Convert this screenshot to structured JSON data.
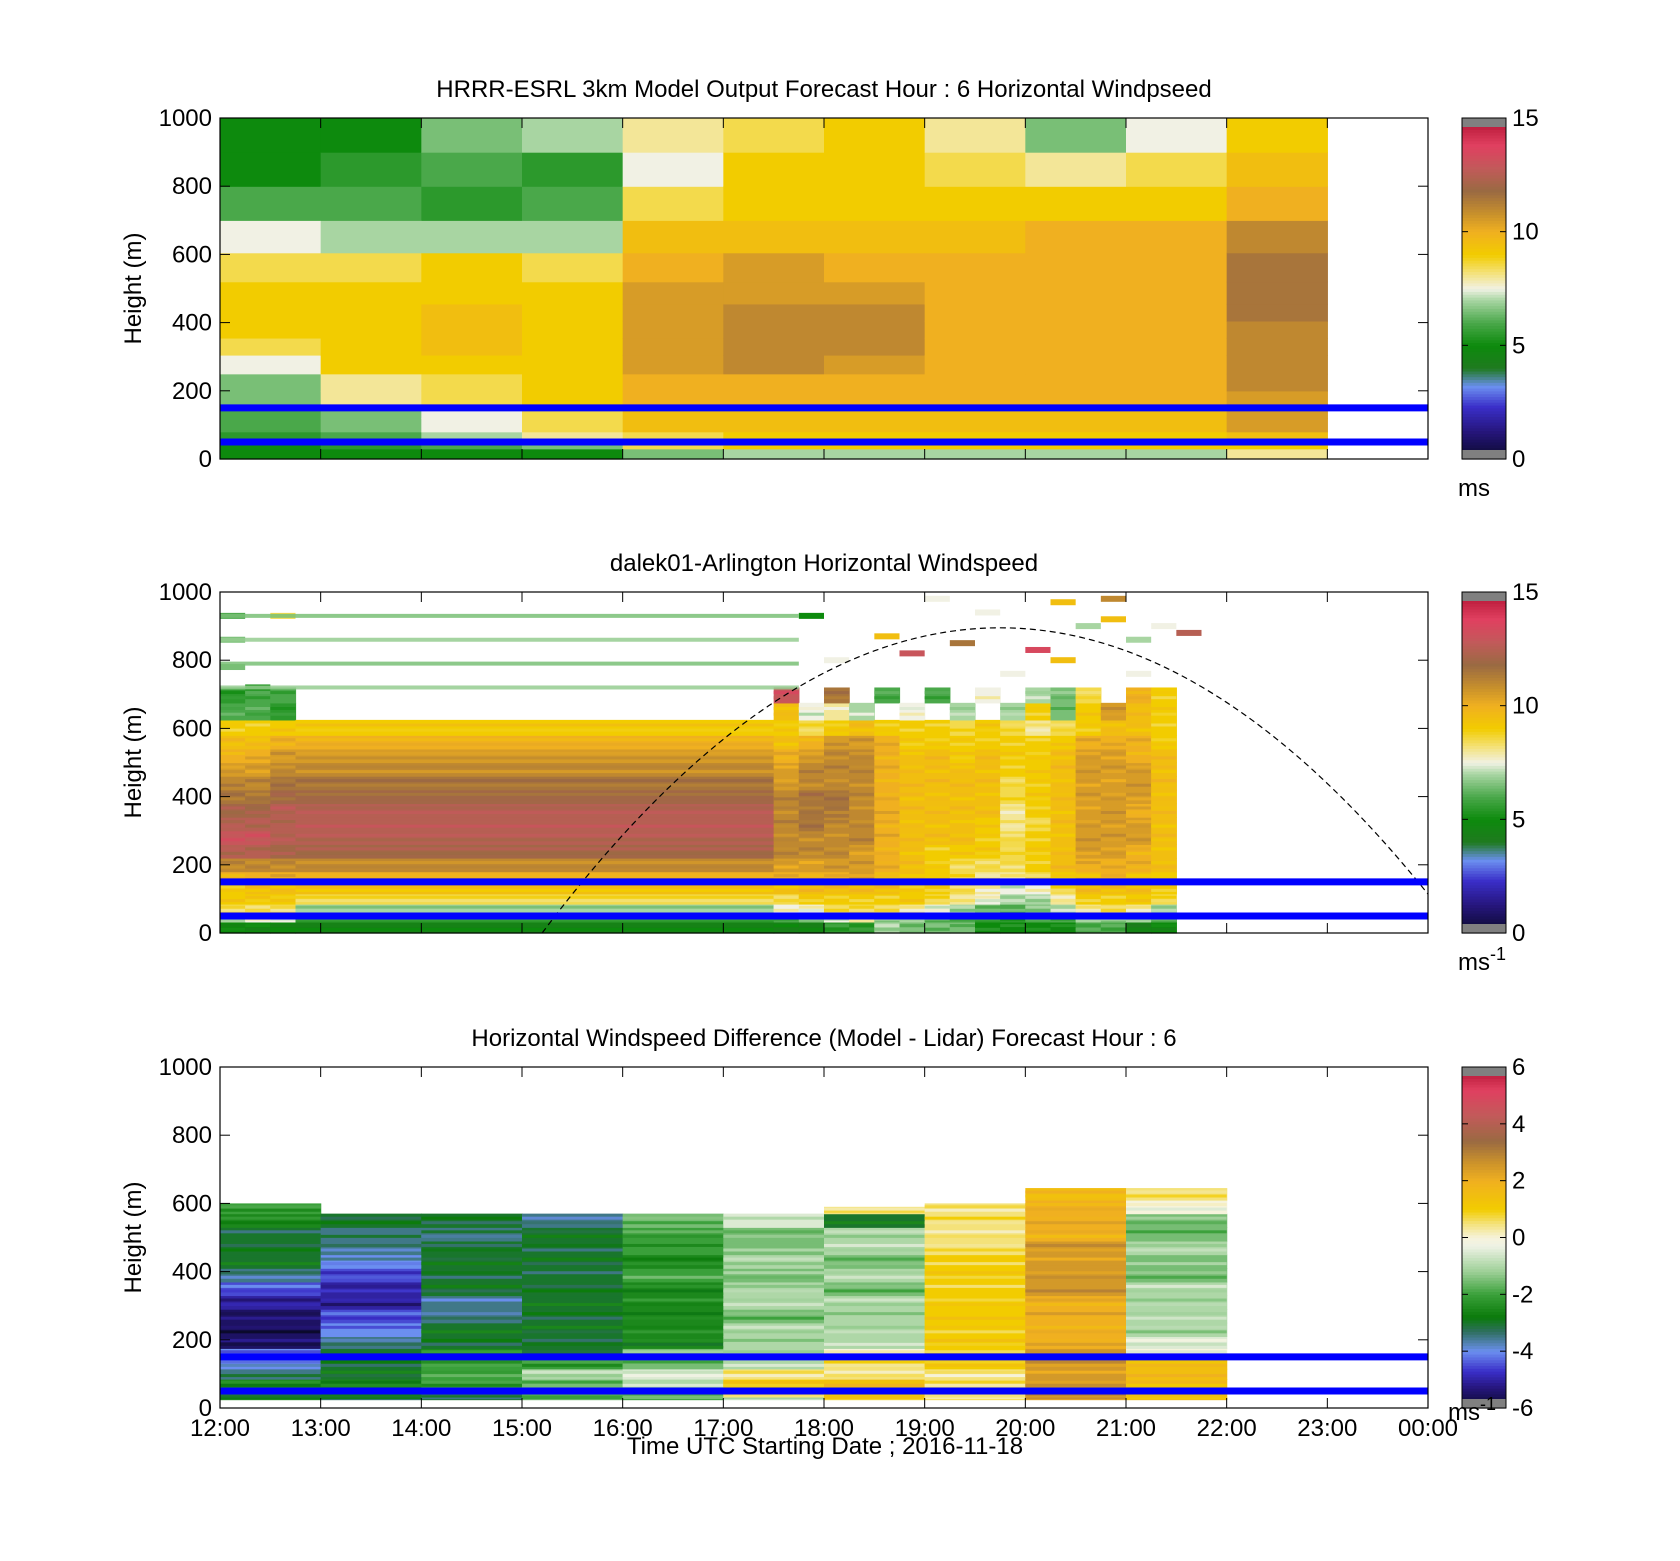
{
  "figure": {
    "xlabel": "Time UTC  Starting Date ; 2016-11-18",
    "x_ticks": [
      "12:00",
      "13:00",
      "14:00",
      "15:00",
      "16:00",
      "17:00",
      "18:00",
      "19:00",
      "20:00",
      "21:00",
      "22:00",
      "23:00",
      "00:00"
    ],
    "y_ticks": [
      "0",
      "200",
      "400",
      "600",
      "800",
      "1000"
    ],
    "ylabel": "Height (m)",
    "reference_line_heights_m": [
      50,
      150
    ],
    "reference_line_color": "#0000ff"
  },
  "chart_data": [
    {
      "type": "heatmap",
      "title": "HRRR-ESRL 3km Model Output   Forecast Hour : 6 Horizontal Windpseed",
      "xlabel": "",
      "ylabel": "Height (m)",
      "xlim": [
        "12:00",
        "00:00"
      ],
      "ylim": [
        0,
        1000
      ],
      "colorbar": {
        "ticks": [
          "0",
          "5",
          "10",
          "15"
        ],
        "min": 0,
        "max": 15,
        "unit": "ms",
        "unit_sup": ""
      },
      "x_hours": [
        12,
        13,
        14,
        15,
        16,
        17,
        18,
        19,
        20,
        21,
        22
      ],
      "heights": [
        20,
        40,
        60,
        100,
        140,
        180,
        220,
        280,
        330,
        380,
        430,
        480,
        560,
        650,
        750,
        850,
        950
      ],
      "values": [
        [
          5.0,
          5.0,
          5.0,
          5.0,
          6.5,
          7.0,
          7.0,
          7.0,
          7.0,
          7.0,
          8.0
        ],
        [
          5.0,
          5.5,
          6.0,
          6.5,
          8.5,
          9.0,
          9.0,
          9.0,
          9.0,
          9.0,
          9.0
        ],
        [
          5.5,
          6.0,
          7.0,
          8.0,
          8.5,
          9.0,
          9.0,
          9.0,
          9.0,
          9.0,
          9.5
        ],
        [
          6.0,
          6.5,
          7.5,
          8.5,
          9.5,
          9.5,
          9.5,
          9.5,
          9.5,
          9.5,
          10.5
        ],
        [
          6.0,
          6.5,
          7.5,
          8.5,
          9.5,
          9.5,
          9.5,
          9.5,
          9.5,
          9.5,
          10.5
        ],
        [
          6.5,
          8.0,
          8.5,
          9.0,
          10.0,
          10.0,
          10.0,
          10.0,
          10.0,
          10.0,
          10.5
        ],
        [
          6.5,
          8.0,
          8.5,
          9.0,
          10.0,
          10.0,
          10.0,
          10.0,
          10.0,
          10.0,
          11.0
        ],
        [
          7.5,
          9.0,
          9.0,
          9.0,
          10.5,
          11.0,
          10.5,
          10.0,
          10.0,
          10.0,
          11.0
        ],
        [
          8.5,
          9.0,
          9.5,
          9.0,
          10.5,
          11.0,
          11.0,
          10.0,
          10.0,
          10.0,
          11.0
        ],
        [
          9.0,
          9.0,
          9.5,
          9.0,
          10.5,
          11.0,
          11.0,
          10.0,
          10.0,
          10.0,
          11.0
        ],
        [
          9.0,
          9.0,
          9.5,
          9.0,
          10.5,
          11.0,
          11.0,
          10.0,
          10.0,
          10.0,
          11.5
        ],
        [
          9.0,
          9.0,
          9.0,
          9.0,
          10.5,
          10.5,
          10.5,
          10.0,
          10.0,
          10.0,
          11.5
        ],
        [
          8.5,
          8.5,
          9.0,
          8.5,
          10.0,
          10.5,
          10.0,
          10.0,
          10.0,
          10.0,
          11.5
        ],
        [
          7.5,
          7.0,
          7.0,
          7.0,
          9.5,
          9.5,
          9.5,
          9.5,
          10.0,
          10.0,
          11.0
        ],
        [
          6.0,
          6.0,
          5.5,
          6.0,
          8.5,
          9.0,
          9.0,
          9.0,
          9.0,
          9.0,
          10.0
        ],
        [
          5.0,
          5.5,
          6.0,
          5.5,
          7.5,
          9.0,
          9.0,
          8.5,
          8.0,
          8.5,
          9.5
        ],
        [
          5.0,
          5.0,
          6.5,
          7.0,
          8.0,
          8.5,
          9.0,
          8.0,
          6.5,
          7.5,
          9.0
        ]
      ]
    },
    {
      "type": "heatmap",
      "title": "dalek01-Arlington  Horizontal Windspeed",
      "xlabel": "",
      "ylabel": "Height (m)",
      "xlim": [
        "12:00",
        "00:00"
      ],
      "ylim": [
        0,
        1000
      ],
      "colorbar": {
        "ticks": [
          "0",
          "5",
          "10",
          "15"
        ],
        "min": 0,
        "max": 15,
        "unit": "ms",
        "unit_sup": "-1"
      },
      "x_hours": [
        12.0,
        12.25,
        12.5,
        17.5,
        17.75,
        18.0,
        18.25,
        18.5,
        18.75,
        19.0,
        19.25,
        19.5,
        19.75,
        20.0,
        20.25,
        20.5,
        20.75,
        21.0,
        21.25,
        21.5
      ],
      "heights": [
        20,
        45,
        70,
        100,
        130,
        160,
        200,
        240,
        280,
        320,
        360,
        400,
        440,
        480,
        520,
        560,
        600,
        650,
        700
      ],
      "values": [
        [
          5.0,
          5.0,
          5.0,
          4.5,
          4.5,
          4.5,
          5.5,
          5.5,
          7.0,
          6.5,
          6.5,
          6.5,
          5.0,
          5.0,
          5.0,
          5.0,
          6.0,
          6.0,
          4.5,
          5.0
        ],
        [
          7.0,
          7.5,
          7.5,
          5.5,
          6.0,
          6.5,
          7.5,
          8.0,
          6.5,
          7.0,
          6.0,
          6.0,
          5.5,
          5.5,
          6.0,
          6.0,
          7.0,
          6.5,
          7.0,
          6.0
        ],
        [
          8.5,
          8.5,
          8.5,
          7.0,
          7.5,
          7.5,
          8.5,
          8.5,
          8.5,
          8.0,
          7.5,
          7.0,
          6.5,
          6.0,
          6.5,
          7.0,
          8.0,
          8.5,
          8.0,
          7.0
        ],
        [
          9.0,
          9.0,
          9.0,
          8.5,
          8.5,
          9.0,
          9.0,
          9.0,
          9.0,
          9.0,
          8.5,
          8.0,
          7.5,
          7.0,
          7.0,
          8.0,
          9.0,
          9.0,
          9.0,
          8.5
        ],
        [
          9.0,
          9.5,
          9.5,
          9.5,
          9.5,
          9.5,
          9.5,
          9.5,
          9.5,
          9.0,
          9.0,
          8.5,
          8.0,
          7.5,
          7.5,
          8.5,
          9.5,
          9.5,
          9.5,
          9.0
        ],
        [
          10.0,
          10.0,
          10.0,
          10.0,
          10.0,
          10.0,
          10.0,
          10.5,
          9.5,
          9.5,
          9.0,
          8.5,
          8.0,
          8.0,
          8.5,
          9.0,
          9.5,
          10.0,
          9.5,
          9.0
        ],
        [
          11.0,
          11.0,
          11.0,
          11.0,
          10.5,
          10.5,
          10.5,
          10.5,
          10.0,
          9.5,
          9.0,
          8.5,
          8.5,
          8.5,
          9.0,
          9.5,
          10.0,
          10.0,
          10.0,
          9.5
        ],
        [
          12.5,
          12.5,
          12.0,
          12.0,
          11.0,
          11.0,
          11.0,
          10.5,
          10.0,
          9.5,
          9.0,
          9.0,
          9.0,
          8.5,
          9.0,
          9.5,
          10.5,
          10.5,
          10.0,
          9.5
        ],
        [
          13.0,
          13.0,
          12.5,
          12.5,
          11.0,
          11.0,
          11.0,
          11.0,
          10.0,
          9.5,
          9.5,
          9.5,
          9.0,
          8.5,
          9.0,
          9.5,
          10.5,
          10.5,
          10.5,
          9.5
        ],
        [
          12.5,
          12.5,
          12.5,
          12.5,
          11.0,
          11.5,
          11.0,
          11.0,
          10.0,
          9.5,
          9.5,
          9.5,
          9.0,
          8.0,
          8.5,
          9.5,
          10.5,
          10.5,
          10.5,
          9.5
        ],
        [
          12.0,
          12.0,
          12.5,
          12.5,
          11.0,
          11.5,
          11.5,
          11.0,
          10.0,
          9.5,
          9.5,
          9.5,
          9.5,
          8.0,
          9.0,
          9.5,
          10.5,
          10.5,
          10.0,
          9.5
        ],
        [
          11.5,
          11.5,
          12.0,
          12.0,
          11.0,
          11.5,
          11.5,
          11.0,
          10.0,
          9.5,
          9.5,
          9.5,
          9.5,
          8.5,
          9.0,
          9.5,
          10.5,
          10.5,
          10.5,
          9.5
        ],
        [
          11.0,
          11.0,
          11.5,
          11.5,
          10.5,
          11.0,
          11.0,
          11.0,
          10.0,
          9.5,
          9.5,
          9.5,
          9.5,
          8.5,
          9.0,
          9.5,
          10.5,
          10.5,
          10.5,
          9.5
        ],
        [
          10.5,
          10.5,
          11.0,
          11.0,
          10.5,
          11.0,
          11.0,
          11.0,
          10.0,
          9.5,
          9.5,
          9.5,
          9.5,
          9.0,
          9.0,
          9.5,
          10.5,
          10.5,
          10.5,
          9.5
        ],
        [
          10.0,
          10.0,
          10.5,
          10.5,
          10.0,
          10.5,
          11.0,
          11.0,
          10.0,
          9.5,
          9.5,
          9.0,
          9.5,
          9.0,
          9.0,
          9.5,
          10.5,
          10.5,
          10.0,
          9.5
        ],
        [
          9.5,
          9.5,
          10.0,
          10.0,
          9.5,
          10.0,
          10.5,
          10.5,
          10.0,
          9.0,
          9.0,
          9.0,
          9.0,
          9.0,
          9.0,
          9.0,
          10.0,
          10.0,
          10.0,
          9.0
        ],
        [
          9.0,
          9.0,
          9.0,
          9.0,
          9.0,
          8.5,
          9.0,
          9.5,
          9.0,
          9.0,
          9.0,
          8.5,
          9.0,
          8.5,
          8.0,
          8.5,
          9.0,
          9.5,
          9.5,
          9.0
        ],
        [
          6.0,
          6.0,
          5.5,
          null,
          9.5,
          7.5,
          8.0,
          7.0,
          null,
          7.5,
          null,
          7.0,
          null,
          7.0,
          9.0,
          6.5,
          9.0,
          10.5,
          9.5,
          9.0
        ],
        [
          5.5,
          6.0,
          6.0,
          null,
          13.0,
          null,
          11.5,
          null,
          6.0,
          null,
          6.0,
          null,
          7.5,
          null,
          7.0,
          6.5,
          8.5,
          null,
          10.0,
          9.0
        ]
      ],
      "sparse_points": [
        {
          "time": 12.0,
          "height": 780,
          "value": 6.5
        },
        {
          "time": 12.0,
          "height": 860,
          "value": 6.5
        },
        {
          "time": 12.0,
          "height": 930,
          "value": 6.0
        },
        {
          "time": 12.25,
          "height": 720,
          "value": 5.0
        },
        {
          "time": 12.5,
          "height": 930,
          "value": 8.5
        },
        {
          "time": 17.75,
          "height": 930,
          "value": 5.0
        },
        {
          "time": 18.0,
          "height": 800,
          "value": 7.5
        },
        {
          "time": 18.5,
          "height": 870,
          "value": 9.5
        },
        {
          "time": 18.75,
          "height": 820,
          "value": 13.0
        },
        {
          "time": 19.0,
          "height": 980,
          "value": 7.5
        },
        {
          "time": 19.25,
          "height": 850,
          "value": 11.5
        },
        {
          "time": 19.5,
          "height": 940,
          "value": 7.5
        },
        {
          "time": 19.75,
          "height": 760,
          "value": 7.5
        },
        {
          "time": 20.0,
          "height": 830,
          "value": 13.5
        },
        {
          "time": 20.25,
          "height": 970,
          "value": 9.5
        },
        {
          "time": 20.25,
          "height": 800,
          "value": 9.5
        },
        {
          "time": 20.5,
          "height": 900,
          "value": 7.0
        },
        {
          "time": 20.75,
          "height": 980,
          "value": 11.0
        },
        {
          "time": 20.75,
          "height": 920,
          "value": 9.5
        },
        {
          "time": 21.0,
          "height": 860,
          "value": 7.0
        },
        {
          "time": 21.0,
          "height": 760,
          "value": 7.5
        },
        {
          "time": 21.25,
          "height": 900,
          "value": 7.5
        },
        {
          "time": 21.5,
          "height": 880,
          "value": 12.5
        }
      ],
      "overlay_curve": {
        "style": "dashed",
        "peak_time": 19.75,
        "peak_height_m": 895,
        "zero_time_left": 15.2,
        "end_height_m": 120
      }
    },
    {
      "type": "heatmap",
      "title": "Horizontal Windspeed Difference (Model - Lidar) Forecast Hour : 6",
      "xlabel": "Time UTC  Starting Date ; 2016-11-18",
      "ylabel": "Height (m)",
      "xlim": [
        "12:00",
        "00:00"
      ],
      "ylim": [
        0,
        1000
      ],
      "colorbar": {
        "ticks": [
          "-6",
          "-4",
          "-2",
          "0",
          "2",
          "4",
          "6"
        ],
        "min": -6,
        "max": 6,
        "unit": "ms",
        "unit_sup": "-1"
      },
      "x_hours": [
        12,
        13,
        14,
        15,
        16,
        17,
        18,
        19,
        20,
        21
      ],
      "column_tops_m": [
        600,
        575,
        575,
        575,
        575,
        575,
        590,
        600,
        645,
        645
      ],
      "heights": [
        20,
        45,
        70,
        100,
        130,
        160,
        190,
        230,
        270,
        310,
        350,
        390,
        430,
        470,
        510,
        550,
        590,
        630
      ],
      "values": [
        [
          -2.5,
          -3.0,
          -3.0,
          -2.0,
          -2.0,
          -1.0,
          1.0,
          0.5,
          2.5,
          1.5
        ],
        [
          -3.0,
          -3.0,
          -3.0,
          -2.0,
          -1.5,
          0.5,
          1.5,
          0.5,
          2.5,
          1.5
        ],
        [
          -2.5,
          -2.5,
          -2.0,
          -1.5,
          -1.0,
          1.0,
          1.5,
          0.5,
          2.5,
          1.5
        ],
        [
          -3.5,
          -3.0,
          -2.0,
          -1.0,
          -0.5,
          0.5,
          0.5,
          0.5,
          2.5,
          1.5
        ],
        [
          -4.0,
          -3.0,
          -2.0,
          -2.0,
          -1.5,
          -1.0,
          0.5,
          1.0,
          2.5,
          1.5
        ],
        [
          -4.0,
          -3.0,
          -2.5,
          -3.0,
          -1.5,
          -1.0,
          0.0,
          1.0,
          2.5,
          0.0
        ],
        [
          -5.5,
          -3.5,
          -3.0,
          -3.0,
          -2.5,
          -1.0,
          -1.0,
          1.0,
          2.0,
          -0.5
        ],
        [
          -5.5,
          -4.0,
          -3.0,
          -3.0,
          -2.5,
          -1.0,
          -1.0,
          1.0,
          2.0,
          -1.0
        ],
        [
          -5.5,
          -4.5,
          -3.5,
          -3.0,
          -2.5,
          -1.5,
          -1.0,
          1.0,
          2.0,
          -1.0
        ],
        [
          -5.0,
          -5.0,
          -3.5,
          -3.0,
          -2.5,
          -1.0,
          -1.0,
          1.0,
          2.0,
          -1.0
        ],
        [
          -4.5,
          -5.0,
          -3.0,
          -3.0,
          -2.5,
          -1.0,
          -1.5,
          1.0,
          2.5,
          -1.0
        ],
        [
          -3.5,
          -4.5,
          -3.0,
          -3.0,
          -2.0,
          -1.5,
          -1.0,
          1.0,
          2.5,
          -1.5
        ],
        [
          -3.0,
          -4.0,
          -3.0,
          -3.0,
          -2.5,
          -1.0,
          -1.5,
          1.0,
          2.5,
          -1.5
        ],
        [
          -3.0,
          -3.5,
          -3.0,
          -3.0,
          -2.0,
          -1.5,
          -1.0,
          0.5,
          2.5,
          -1.0
        ],
        [
          -3.0,
          -3.5,
          -3.5,
          -3.0,
          -2.0,
          -1.5,
          -1.0,
          0.5,
          2.0,
          -1.5
        ],
        [
          -2.5,
          -3.0,
          -3.0,
          -3.5,
          -1.5,
          -0.5,
          -3.0,
          0.5,
          2.0,
          -1.5
        ],
        [
          -2.0,
          null,
          null,
          null,
          null,
          null,
          0.5,
          0.5,
          2.0,
          0.0
        ],
        [
          null,
          null,
          null,
          null,
          null,
          null,
          null,
          null,
          1.5,
          0.5
        ]
      ]
    }
  ]
}
